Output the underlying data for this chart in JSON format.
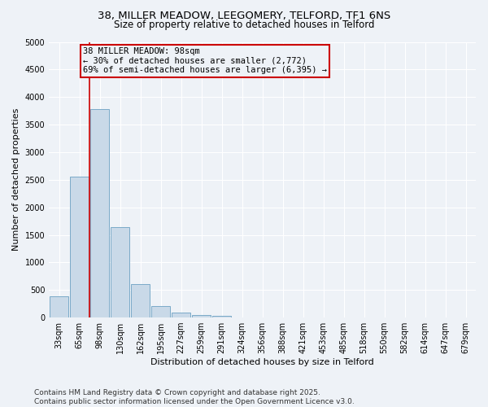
{
  "title_line1": "38, MILLER MEADOW, LEEGOMERY, TELFORD, TF1 6NS",
  "title_line2": "Size of property relative to detached houses in Telford",
  "xlabel": "Distribution of detached houses by size in Telford",
  "ylabel": "Number of detached properties",
  "categories": [
    "33sqm",
    "65sqm",
    "98sqm",
    "130sqm",
    "162sqm",
    "195sqm",
    "227sqm",
    "259sqm",
    "291sqm",
    "324sqm",
    "356sqm",
    "388sqm",
    "421sqm",
    "453sqm",
    "485sqm",
    "518sqm",
    "550sqm",
    "582sqm",
    "614sqm",
    "647sqm",
    "679sqm"
  ],
  "values": [
    380,
    2550,
    3780,
    1640,
    610,
    215,
    95,
    50,
    30,
    0,
    0,
    0,
    0,
    0,
    0,
    0,
    0,
    0,
    0,
    0,
    0
  ],
  "bar_color": "#c9d9e8",
  "bar_edge_color": "#7aaac8",
  "vline_color": "#cc0000",
  "annotation_text": "38 MILLER MEADOW: 98sqm\n← 30% of detached houses are smaller (2,772)\n69% of semi-detached houses are larger (6,395) →",
  "annotation_box_color": "#cc0000",
  "ylim": [
    0,
    5000
  ],
  "yticks": [
    0,
    500,
    1000,
    1500,
    2000,
    2500,
    3000,
    3500,
    4000,
    4500,
    5000
  ],
  "background_color": "#eef2f7",
  "grid_color": "#ffffff",
  "footer": "Contains HM Land Registry data © Crown copyright and database right 2025.\nContains public sector information licensed under the Open Government Licence v3.0.",
  "title_fontsize": 9.5,
  "subtitle_fontsize": 8.5,
  "axis_label_fontsize": 8,
  "tick_fontsize": 7,
  "annotation_fontsize": 7.5,
  "footer_fontsize": 6.5
}
